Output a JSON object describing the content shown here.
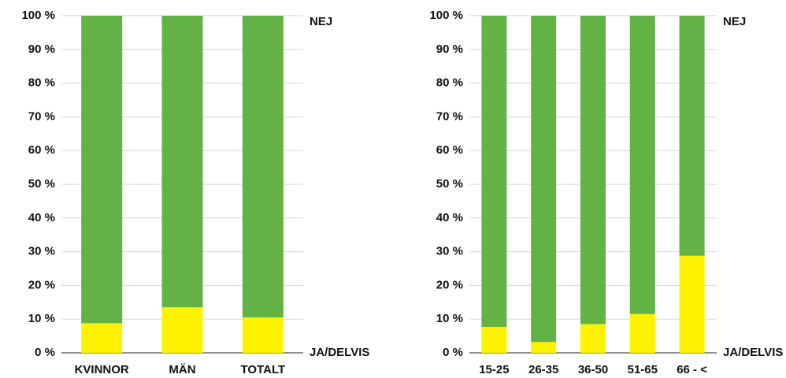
{
  "chart_data": [
    {
      "type": "stacked_bar",
      "categories": [
        "KVINNOR",
        "MÄN",
        "TOTALT"
      ],
      "series": [
        {
          "name": "JA/DELVIS",
          "color": "#fff200",
          "values": [
            8.8,
            13.5,
            10.5
          ]
        },
        {
          "name": "NEJ",
          "color": "#62b245",
          "values": [
            91.2,
            86.5,
            89.5
          ]
        }
      ],
      "ylim": [
        0,
        100
      ],
      "yticks": [
        {
          "value": 0,
          "label": "0 %"
        },
        {
          "value": 10,
          "label": "10 %"
        },
        {
          "value": 20,
          "label": "20 %"
        },
        {
          "value": 30,
          "label": "30 %"
        },
        {
          "value": 40,
          "label": "40 %"
        },
        {
          "value": 50,
          "label": "50 %"
        },
        {
          "value": 60,
          "label": "60 %"
        },
        {
          "value": 70,
          "label": "70 %"
        },
        {
          "value": 80,
          "label": "80 %"
        },
        {
          "value": 90,
          "label": "90 %"
        },
        {
          "value": 100,
          "label": "100 %"
        }
      ],
      "grid": true
    },
    {
      "type": "stacked_bar",
      "categories": [
        "15-25",
        "26-35",
        "36-50",
        "51-65",
        "66 - <"
      ],
      "series": [
        {
          "name": "JA/DELVIS",
          "color": "#fff200",
          "values": [
            7.7,
            3.2,
            8.5,
            11.5,
            28.8
          ]
        },
        {
          "name": "NEJ",
          "color": "#62b245",
          "values": [
            92.3,
            96.8,
            91.5,
            88.5,
            71.2
          ]
        }
      ],
      "ylim": [
        0,
        100
      ],
      "yticks": [
        {
          "value": 0,
          "label": "0 %"
        },
        {
          "value": 10,
          "label": "10 %"
        },
        {
          "value": 20,
          "label": "20 %"
        },
        {
          "value": 30,
          "label": "30 %"
        },
        {
          "value": 40,
          "label": "40 %"
        },
        {
          "value": 50,
          "label": "50 %"
        },
        {
          "value": 60,
          "label": "60 %"
        },
        {
          "value": 70,
          "label": "70 %"
        },
        {
          "value": 80,
          "label": "80 %"
        },
        {
          "value": 90,
          "label": "90 %"
        },
        {
          "value": 100,
          "label": "100 %"
        }
      ],
      "grid": true
    }
  ]
}
